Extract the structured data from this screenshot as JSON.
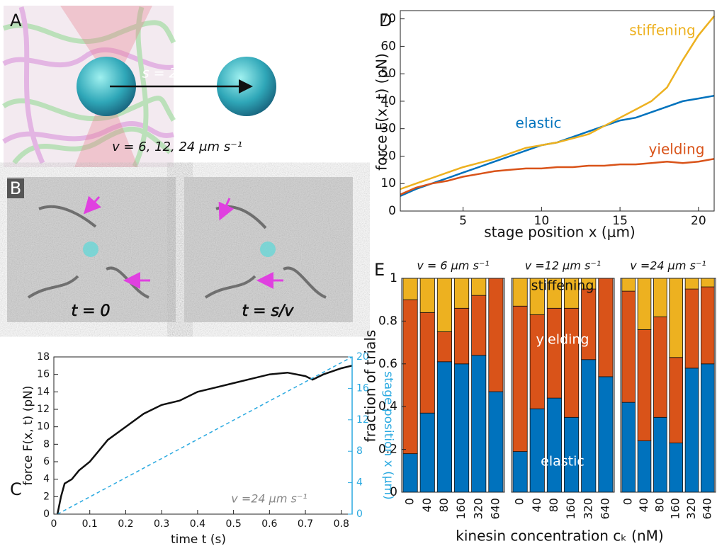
{
  "panels": {
    "A": {
      "letter": "A",
      "separation": "s = 20 μm",
      "speeds": "v = 6, 12, 24 μm s⁻¹"
    },
    "B": {
      "letter": "B",
      "left_time": "t = 0",
      "right_time": "t = s/v"
    }
  },
  "chart_data": [
    {
      "type": "line",
      "label": "C",
      "xlabel": "time t (s)",
      "ylabel": "force F(x, t) (pN)",
      "y2label": "stage position x (μm)",
      "annotation": "v =24 μm s⁻¹",
      "xlim": [
        0,
        0.83
      ],
      "xticks": [
        0,
        0.1,
        0.2,
        0.3,
        0.4,
        0.5,
        0.6,
        0.7,
        0.8
      ],
      "ylim": [
        0,
        18
      ],
      "yticks": [
        0,
        2,
        4,
        6,
        8,
        10,
        12,
        14,
        16,
        18
      ],
      "y2lim": [
        0,
        20
      ],
      "y2ticks": [
        0,
        4,
        8,
        12,
        16,
        20
      ],
      "series": [
        {
          "color": "#111111",
          "x": [
            0.01,
            0.02,
            0.03,
            0.05,
            0.07,
            0.1,
            0.12,
            0.15,
            0.2,
            0.25,
            0.3,
            0.35,
            0.4,
            0.45,
            0.5,
            0.55,
            0.6,
            0.65,
            0.7,
            0.72,
            0.75,
            0.8,
            0.83
          ],
          "values": [
            0,
            2,
            3.5,
            4,
            5,
            6,
            7,
            8.5,
            10,
            11.5,
            12.5,
            13,
            14,
            14.5,
            15,
            15.5,
            16,
            16.2,
            15.8,
            15.4,
            16,
            16.7,
            17
          ]
        },
        {
          "color": "#2aa9e0",
          "style": "dashed",
          "axis": "y2",
          "x": [
            0.01,
            0.83
          ],
          "values": [
            0,
            20
          ]
        }
      ]
    },
    {
      "type": "line",
      "label": "D",
      "xlabel": "stage position x (μm)",
      "ylabel": "force F(x, t) (pN)",
      "xlim": [
        1,
        21
      ],
      "xticks": [
        5,
        10,
        15,
        20
      ],
      "ylim": [
        0,
        73
      ],
      "yticks": [
        0,
        10,
        20,
        30,
        40,
        50,
        60,
        70
      ],
      "x": [
        1,
        2,
        3,
        4,
        5,
        6,
        7,
        8,
        9,
        10,
        11,
        12,
        13,
        14,
        15,
        16,
        17,
        18,
        19,
        20,
        21
      ],
      "series": [
        {
          "name": "elastic",
          "color": "#0072bd",
          "values": [
            5.5,
            8,
            10,
            12,
            14,
            16,
            18,
            20,
            22,
            24,
            25,
            27,
            29,
            31,
            33,
            34,
            36,
            38,
            40,
            41,
            42
          ]
        },
        {
          "name": "yielding",
          "color": "#d95319",
          "values": [
            6,
            8.5,
            10,
            11,
            12.5,
            13.5,
            14.5,
            15,
            15.5,
            15.5,
            16,
            16,
            16.5,
            16.5,
            17,
            17,
            17.5,
            18,
            17.5,
            18,
            19
          ]
        },
        {
          "name": "stiffening",
          "color": "#edb120",
          "values": [
            8,
            10,
            12,
            14,
            16,
            17.5,
            19,
            21,
            23,
            24,
            25,
            26.5,
            28,
            31,
            34,
            37,
            40,
            45,
            55,
            64,
            71
          ]
        }
      ]
    },
    {
      "type": "bar",
      "stacked": true,
      "label": "E",
      "title": "v = 6 μm s⁻¹",
      "ylabel": "fraction of trials",
      "categories": [
        "0",
        "40",
        "80",
        "160",
        "320",
        "640"
      ],
      "ylim": [
        0,
        1
      ],
      "yticks": [
        0,
        0.2,
        0.4,
        0.6,
        0.8,
        1
      ],
      "series": [
        {
          "color": "#0072bd",
          "values": [
            0.18,
            0.37,
            0.61,
            0.6,
            0.64,
            0.47
          ]
        },
        {
          "color": "#d95319",
          "values": [
            0.72,
            0.47,
            0.14,
            0.26,
            0.28,
            0.53
          ]
        },
        {
          "color": "#edb120",
          "values": [
            0.1,
            0.16,
            0.25,
            0.14,
            0.08,
            0.0
          ]
        }
      ]
    },
    {
      "type": "bar",
      "stacked": true,
      "title": "v =12 μm s⁻¹",
      "xlabel": "kinesin concentration cₖ (nM)",
      "categories": [
        "0",
        "40",
        "80",
        "160",
        "320",
        "640"
      ],
      "ylim": [
        0,
        1
      ],
      "series": [
        {
          "name": "elastic",
          "color": "#0072bd",
          "values": [
            0.19,
            0.39,
            0.44,
            0.35,
            0.62,
            0.54
          ]
        },
        {
          "name": "yielding",
          "color": "#d95319",
          "values": [
            0.68,
            0.44,
            0.42,
            0.51,
            0.33,
            0.46
          ]
        },
        {
          "name": "stiffening",
          "color": "#edb120",
          "values": [
            0.13,
            0.17,
            0.14,
            0.14,
            0.05,
            0.0
          ]
        }
      ]
    },
    {
      "type": "bar",
      "stacked": true,
      "title": "v =24 μm s⁻¹",
      "categories": [
        "0",
        "40",
        "80",
        "160",
        "320",
        "640"
      ],
      "ylim": [
        0,
        1
      ],
      "series": [
        {
          "color": "#0072bd",
          "values": [
            0.42,
            0.24,
            0.35,
            0.23,
            0.58,
            0.6
          ]
        },
        {
          "color": "#d95319",
          "values": [
            0.52,
            0.52,
            0.47,
            0.4,
            0.37,
            0.36
          ]
        },
        {
          "color": "#edb120",
          "values": [
            0.06,
            0.24,
            0.18,
            0.37,
            0.05,
            0.04
          ]
        }
      ]
    }
  ]
}
